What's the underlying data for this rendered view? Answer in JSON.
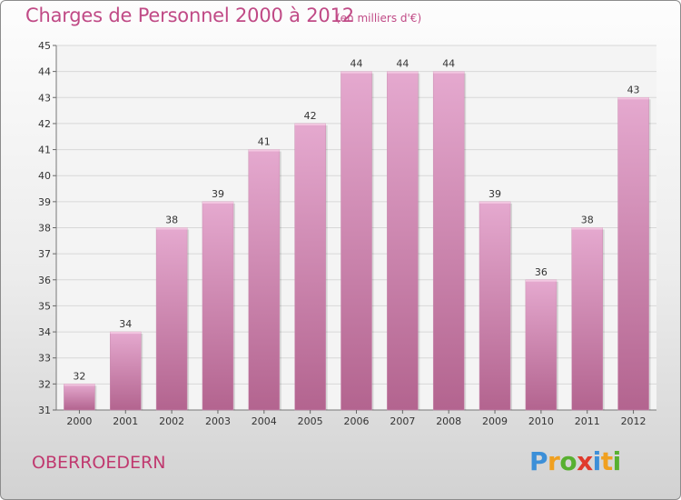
{
  "chart_data": {
    "type": "bar",
    "title": "Charges de Personnel 2000 à 2012",
    "subtitle": "(en milliers d'€)",
    "categories": [
      "2000",
      "2001",
      "2002",
      "2003",
      "2004",
      "2005",
      "2006",
      "2007",
      "2008",
      "2009",
      "2010",
      "2011",
      "2012"
    ],
    "values": [
      32,
      34,
      38,
      39,
      41,
      42,
      44,
      44,
      44,
      39,
      36,
      38,
      43
    ],
    "ylim": [
      31,
      45
    ],
    "yticks": [
      31,
      32,
      33,
      34,
      35,
      36,
      37,
      38,
      39,
      40,
      41,
      42,
      43,
      44,
      45
    ],
    "grid": true,
    "bar_color_top": "#e5a9cf",
    "bar_color_bottom": "#b3648f"
  },
  "footer": {
    "place": "OBERROEDERN",
    "brand": [
      "P",
      "r",
      "o",
      "x",
      "i",
      "t",
      "i"
    ],
    "brand_colors": [
      "#3c8fd8",
      "#f0a020",
      "#58b030",
      "#e03a2c",
      "#3c8fd8",
      "#f0a020",
      "#58b030"
    ]
  }
}
